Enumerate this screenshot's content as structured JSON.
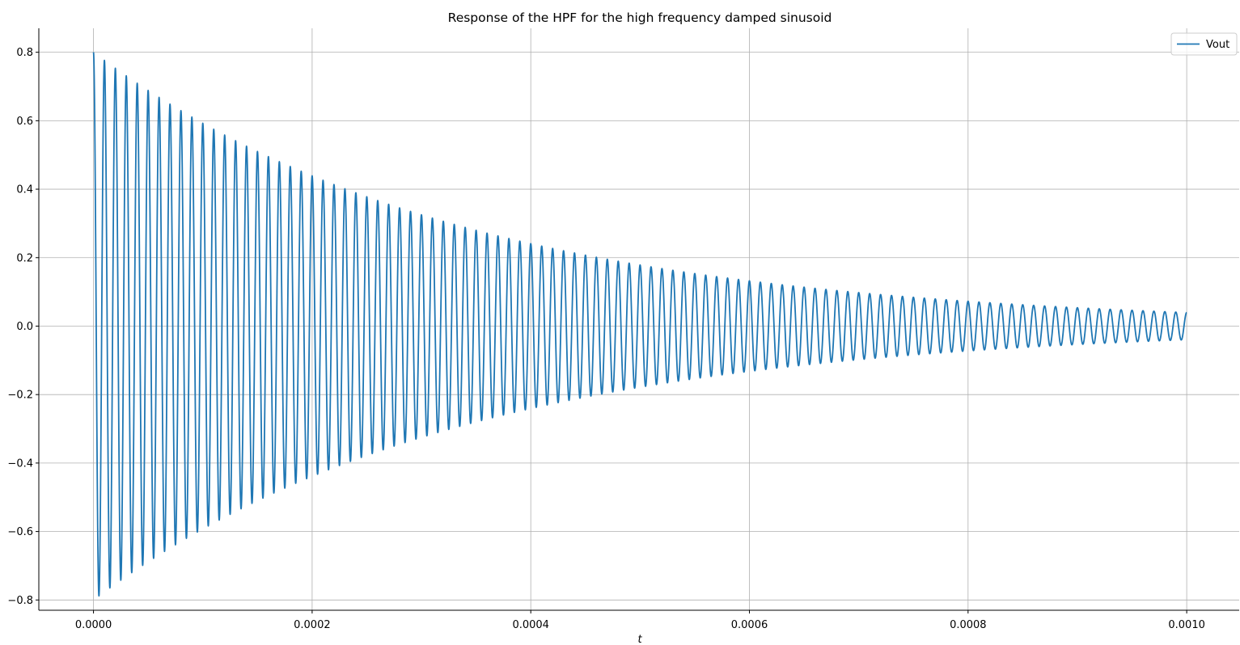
{
  "chart_data": {
    "type": "line",
    "title": "Response of the HPF for the high frequency damped sinusoid",
    "xlabel": "t",
    "ylabel": "",
    "xlim": [
      -5e-05,
      0.001048
    ],
    "ylim": [
      -0.83,
      0.87
    ],
    "xticks": [
      0.0,
      0.0002,
      0.0004,
      0.0006,
      0.0008,
      0.001
    ],
    "xtick_labels": [
      "0.0000",
      "0.0002",
      "0.0004",
      "0.0006",
      "0.0008",
      "0.0010"
    ],
    "yticks": [
      -0.8,
      -0.6,
      -0.4,
      -0.2,
      0.0,
      0.2,
      0.4,
      0.6,
      0.8
    ],
    "ytick_labels": [
      "−0.8",
      "−0.6",
      "−0.4",
      "−0.2",
      "0.0",
      "0.2",
      "0.4",
      "0.6",
      "0.8"
    ],
    "grid": true,
    "legend": "top-right",
    "series": [
      {
        "name": "Vout",
        "color": "#1f77b4",
        "t_start": 0.0,
        "t_end": 0.001,
        "frequency_hz": 100000,
        "decay_rate_per_s": 3000,
        "amplitude": 0.8,
        "phase": "cosine"
      }
    ]
  }
}
